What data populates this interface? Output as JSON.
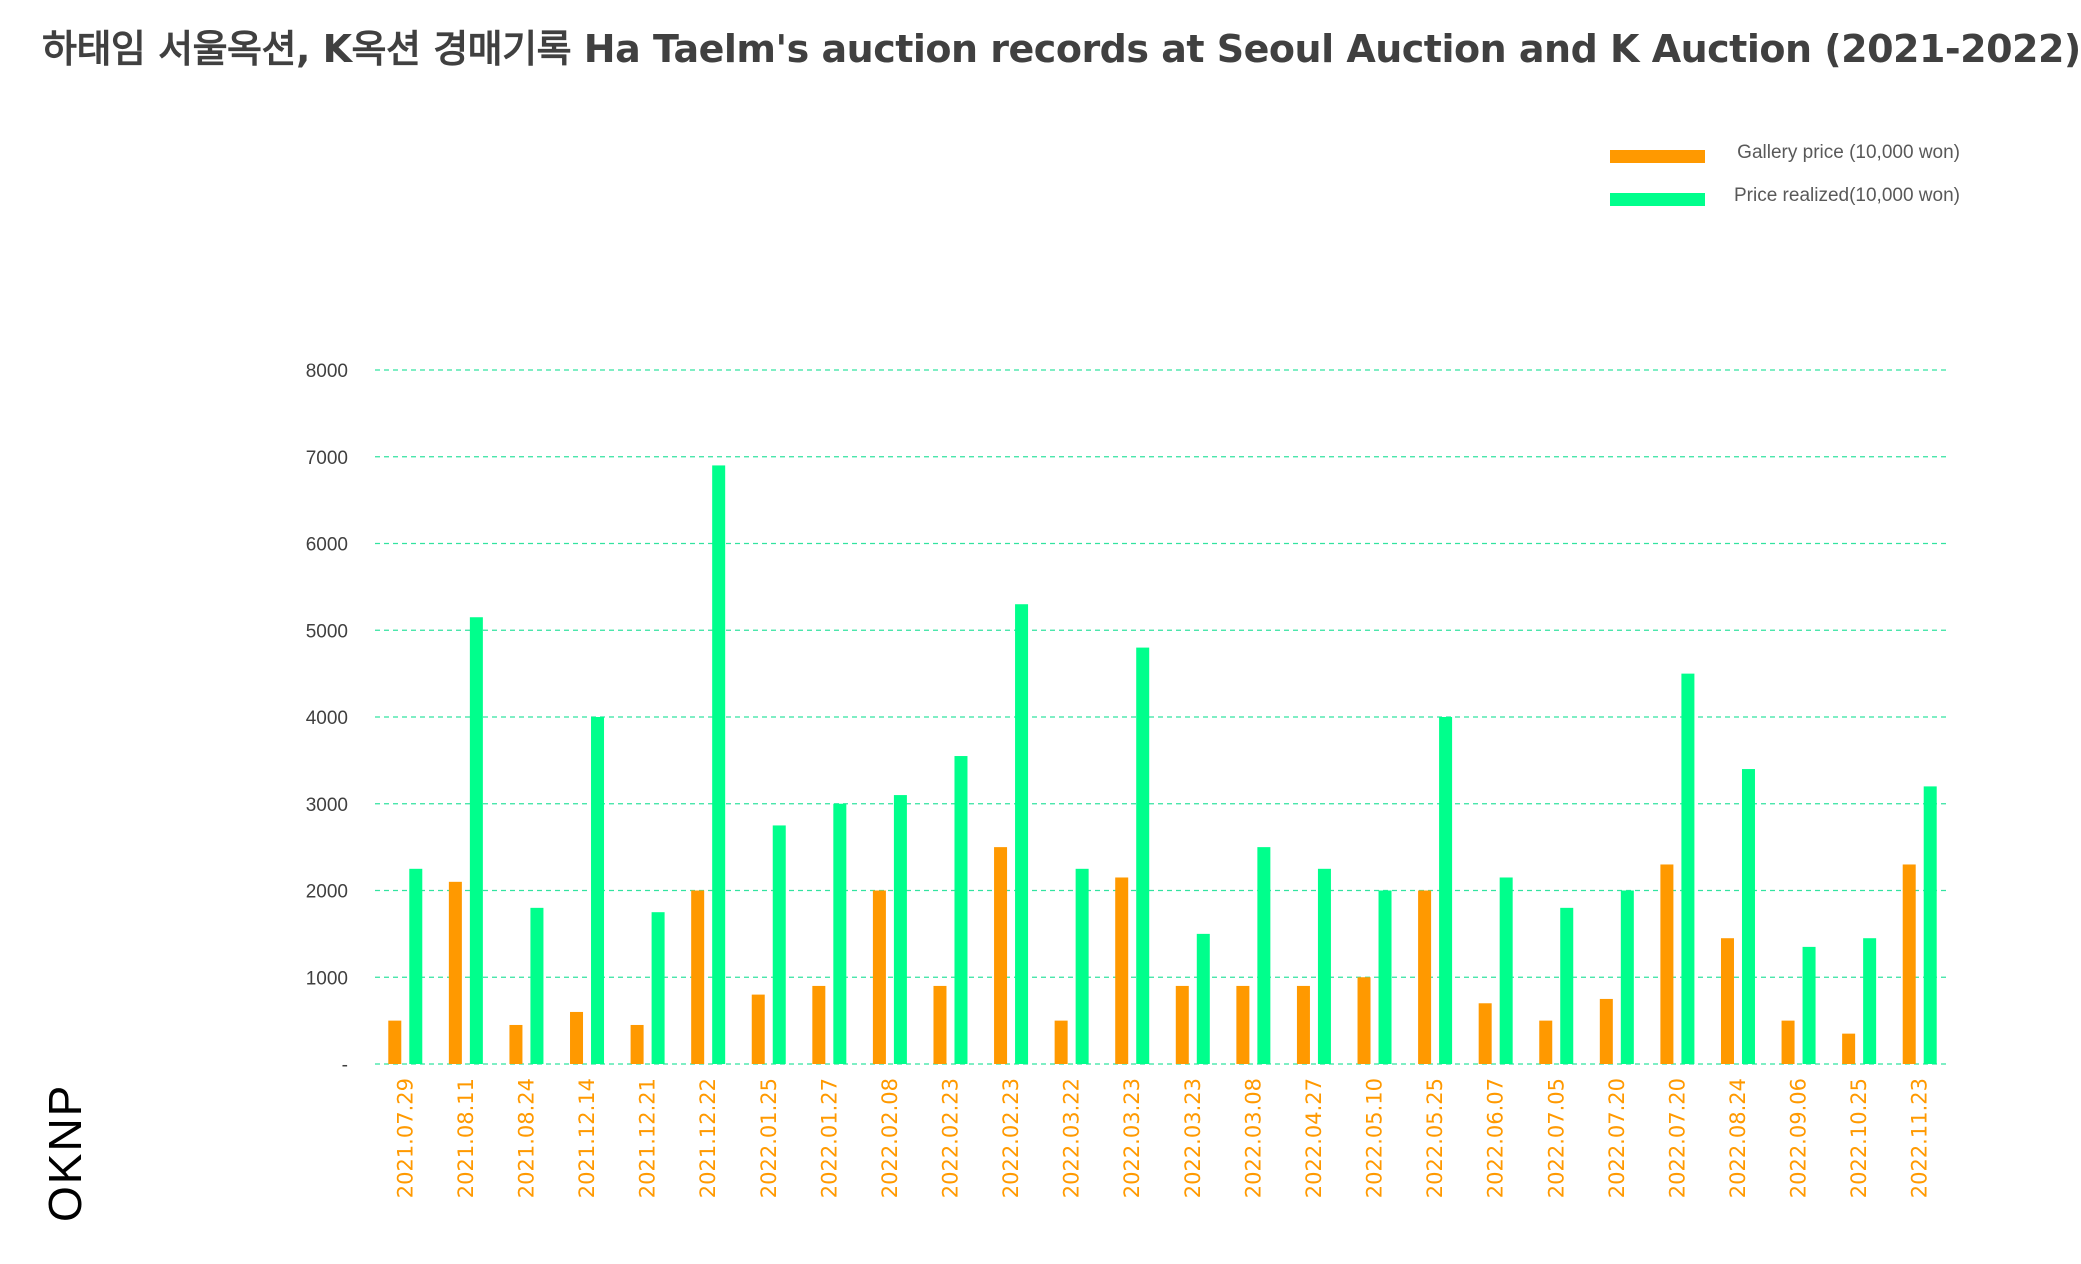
{
  "title": "하태임 서울옥션, K옥션 경매기록 Ha Taelm's auction records at Seoul Auction and K Auction  (2021-2022)",
  "brand": "OKNP",
  "colors": {
    "gallery": "#ff9900",
    "realized": "#00ff8c",
    "grid": "#33e3a0",
    "tick_text": "#404040",
    "category_text": "#ff9900"
  },
  "chart_data": {
    "type": "bar",
    "title": "하태임 서울옥션, K옥션 경매기록 Ha Taelm's auction records at Seoul Auction and K Auction  (2021-2022)",
    "xlabel": "",
    "ylabel": "",
    "ylim": [
      0,
      8000
    ],
    "yticks": [
      0,
      1000,
      2000,
      3000,
      4000,
      5000,
      6000,
      7000,
      8000
    ],
    "ytick_labels": [
      "-",
      "1000",
      "2000",
      "3000",
      "4000",
      "5000",
      "6000",
      "7000",
      "8000"
    ],
    "grid": true,
    "legend_position": "top-right",
    "categories": [
      "2021.07.29",
      "2021.08.11",
      "2021.08.24",
      "2021.12.14",
      "2021.12.21",
      "2021.12.22",
      "2022.01.25",
      "2022.01.27",
      "2022.02.08",
      "2022.02.23",
      "2022.02.23",
      "2022.03.22",
      "2022.03.23",
      "2022.03.23",
      "2022.03.08",
      "2022.04.27",
      "2022.05.10",
      "2022.05.25",
      "2022.06.07",
      "2022.07.05",
      "2022.07.20",
      "2022.07.20",
      "2022.08.24",
      "2022.09.06",
      "2022.10.25",
      "2022.11.23"
    ],
    "series": [
      {
        "name": "Gallery price (10,000 won)",
        "values": [
          500,
          2100,
          450,
          600,
          450,
          2000,
          800,
          900,
          2000,
          900,
          2500,
          500,
          2150,
          900,
          900,
          900,
          1000,
          2000,
          700,
          500,
          750,
          2300,
          1450,
          500,
          350,
          2300
        ]
      },
      {
        "name": "Price realized(10,000 won)",
        "values": [
          2250,
          5150,
          1800,
          4000,
          1750,
          6900,
          2750,
          3000,
          3100,
          3550,
          5300,
          2250,
          4800,
          1500,
          2500,
          2250,
          2000,
          4000,
          2150,
          1800,
          2000,
          4500,
          3400,
          1350,
          1450,
          3200
        ]
      }
    ]
  }
}
